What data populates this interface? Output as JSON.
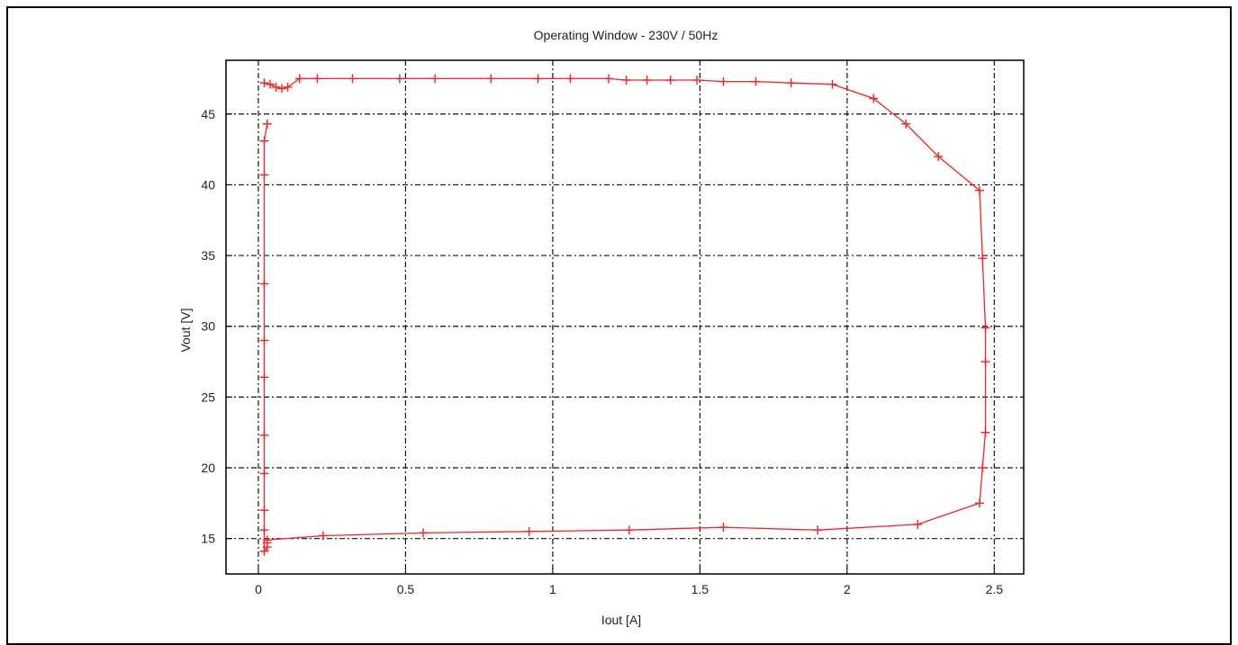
{
  "chart_data": {
    "type": "line",
    "title": "Operating Window - 230V / 50Hz",
    "xlabel": "Iout [A]",
    "ylabel": "Vout [V]",
    "xlim": [
      -0.11,
      2.6
    ],
    "ylim": [
      12.5,
      48.8
    ],
    "xticks": [
      0,
      0.5,
      1,
      1.5,
      2,
      2.5
    ],
    "xtick_labels": [
      "0",
      "0.5",
      "1",
      "1.5",
      "2",
      "2.5"
    ],
    "yticks": [
      15,
      20,
      25,
      30,
      35,
      40,
      45
    ],
    "ytick_labels": [
      "15",
      "20",
      "25",
      "30",
      "35",
      "40",
      "45"
    ],
    "grid": true,
    "line_color": "#ff2020",
    "series": [
      {
        "x": [
          0.02,
          0.04,
          0.06,
          0.08,
          0.1,
          0.14,
          0.2,
          0.32,
          0.48,
          0.6,
          0.79,
          0.95,
          1.06,
          1.19,
          1.25,
          1.32,
          1.4,
          1.49,
          1.58,
          1.69,
          1.81,
          1.95,
          2.09,
          2.2,
          2.31,
          2.45,
          2.46,
          2.47,
          2.47,
          2.47,
          2.46,
          2.45,
          2.24,
          1.9,
          1.58,
          1.26,
          0.92,
          0.56,
          0.22,
          0.03,
          0.03,
          0.03,
          0.02,
          0.02,
          0.02,
          0.02,
          0.02,
          0.02,
          0.02,
          0.02,
          0.02,
          0.02,
          0.03,
          0.03
        ],
        "y": [
          47.2,
          47.1,
          46.9,
          46.8,
          46.9,
          47.5,
          47.5,
          47.5,
          47.5,
          47.5,
          47.5,
          47.5,
          47.5,
          47.5,
          47.4,
          47.4,
          47.4,
          47.4,
          47.3,
          47.3,
          47.2,
          47.1,
          46.1,
          44.3,
          42.0,
          39.6,
          34.8,
          29.9,
          27.5,
          22.5,
          20.0,
          17.5,
          16.0,
          15.6,
          15.8,
          15.6,
          15.5,
          15.4,
          15.2,
          14.9,
          14.7,
          14.4,
          14.1,
          15.6,
          17.0,
          19.6,
          22.3,
          26.4,
          29.0,
          33.0,
          40.7,
          43.1,
          44.3,
          44.3
        ]
      }
    ]
  }
}
